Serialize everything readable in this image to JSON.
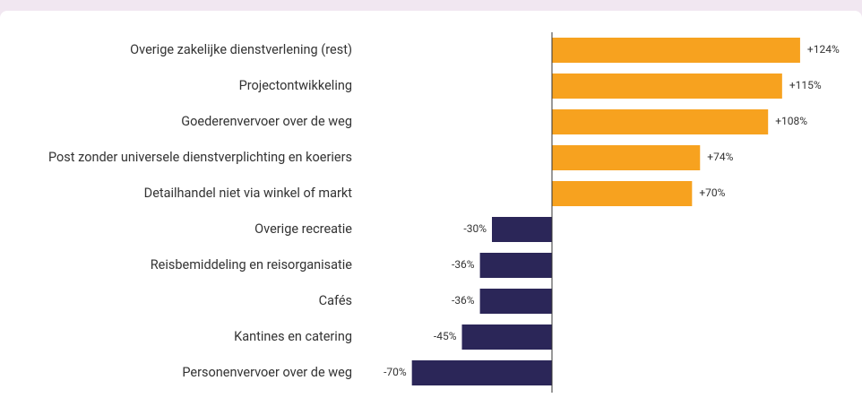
{
  "chart_data": {
    "type": "bar",
    "orientation": "horizontal",
    "categories": [
      "Overige zakelijke dienstverlening (rest)",
      "Projectontwikkeling",
      "Goederenvervoer over de weg",
      "Post zonder universele dienstverplichting en koeriers",
      "Detailhandel niet via winkel of markt",
      "Overige recreatie",
      "Reisbemiddeling en reisorganisatie",
      "Cafés",
      "Kantines en catering",
      "Personenvervoer over de weg"
    ],
    "values": [
      124,
      115,
      108,
      74,
      70,
      -30,
      -36,
      -36,
      -45,
      -70
    ],
    "value_labels": [
      "+124%",
      "+115%",
      "+108%",
      "+74%",
      "+70%",
      "-30%",
      "-36%",
      "-36%",
      "-45%",
      "-70%"
    ],
    "colors": [
      "#f7a21f",
      "#f7a21f",
      "#f7a21f",
      "#f7a21f",
      "#f7a21f",
      "#2b2658",
      "#2b2658",
      "#2b2658",
      "#2b2658",
      "#2b2658"
    ],
    "xlim": [
      -90,
      150
    ]
  }
}
